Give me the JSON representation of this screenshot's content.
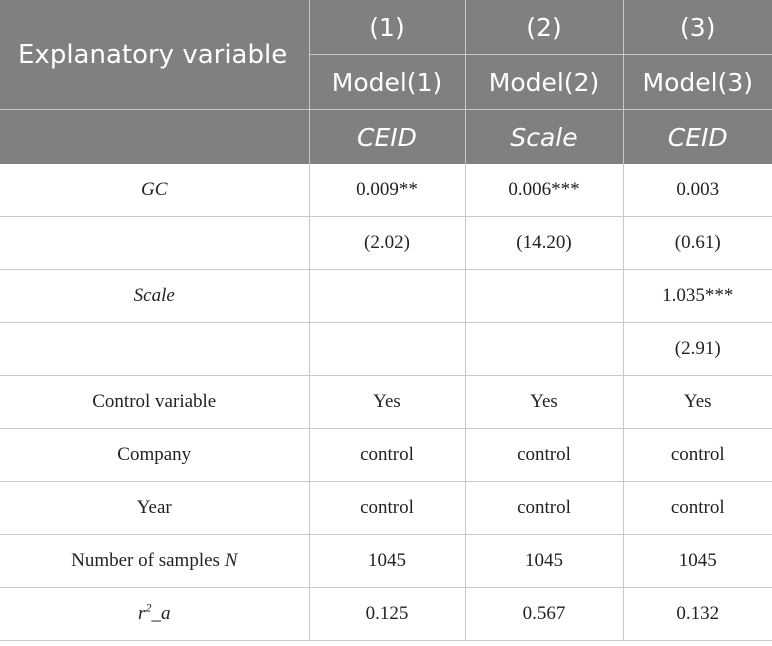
{
  "header": {
    "stub": "Explanatory variable",
    "col_numbers": [
      "(1)",
      "(2)",
      "(3)"
    ],
    "models": [
      "Model(1)",
      "Model(2)",
      "Model(3)"
    ],
    "dependents": [
      "CEID",
      "Scale",
      "CEID"
    ]
  },
  "rows": {
    "gc": {
      "label": "GC",
      "values": [
        "0.009**",
        "0.006***",
        "0.003"
      ]
    },
    "gc_t": {
      "label": "",
      "values": [
        "(2.02)",
        "(14.20)",
        "(0.61)"
      ]
    },
    "scale": {
      "label": "Scale",
      "values": [
        "",
        "",
        "1.035***"
      ]
    },
    "scale_t": {
      "label": "",
      "values": [
        "",
        "",
        "(2.91)"
      ]
    },
    "control": {
      "label": "Control variable",
      "values": [
        "Yes",
        "Yes",
        "Yes"
      ]
    },
    "company": {
      "label": "Company",
      "values": [
        "control",
        "control",
        "control"
      ]
    },
    "year": {
      "label": "Year",
      "values": [
        "control",
        "control",
        "control"
      ]
    },
    "samples": {
      "label_prefix": "Number of samples ",
      "label_var": "N",
      "values": [
        "1045",
        "1045",
        "1045"
      ]
    },
    "r2": {
      "label_base": "r",
      "label_sup": "2",
      "label_suffix": "_a",
      "values": [
        "0.125",
        "0.567",
        "0.132"
      ]
    }
  }
}
